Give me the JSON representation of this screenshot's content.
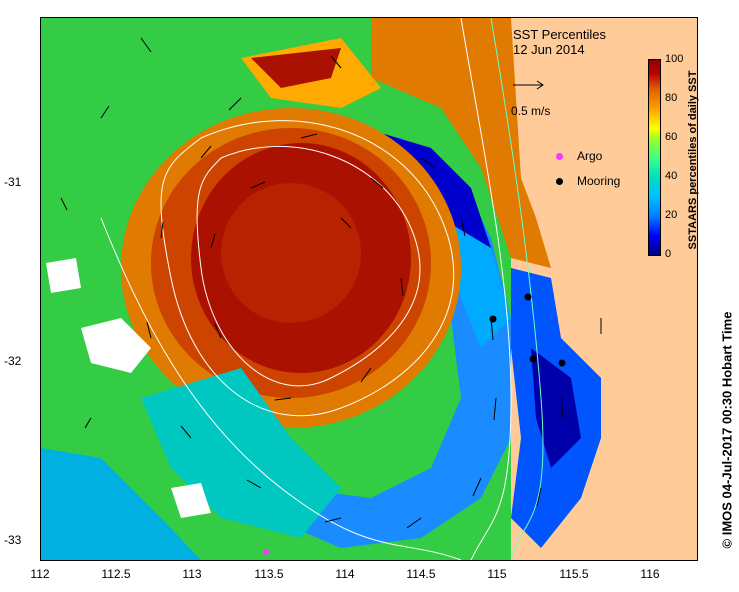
{
  "title": "SST Percentiles",
  "date": "12 Jun 2014",
  "scale_arrow_label": "0.5 m/s",
  "legend": {
    "argo_label": "Argo",
    "mooring_label": "Mooring",
    "argo_color": "#ff33ff",
    "mooring_color": "#000000"
  },
  "colorbar": {
    "label": "SSTAARS percentiles of daily SST",
    "ticks": [
      "100",
      "80",
      "60",
      "40",
      "20",
      "0"
    ],
    "colors": [
      "#00007f",
      "#0000ff",
      "#0080ff",
      "#00c0ff",
      "#00e0c0",
      "#40ff80",
      "#a0ff20",
      "#ffff00",
      "#ffa000",
      "#e06000",
      "#c00000",
      "#900000"
    ]
  },
  "x_ticks": [
    "112",
    "112.5",
    "113",
    "113.5",
    "114",
    "114.5",
    "115",
    "115.5",
    "116"
  ],
  "y_ticks": [
    "-31",
    "-32",
    "-33"
  ],
  "credit": "© IMOS 04-Jul-2017 00:30 Hobart Time",
  "land_color": "#ffcc99"
}
